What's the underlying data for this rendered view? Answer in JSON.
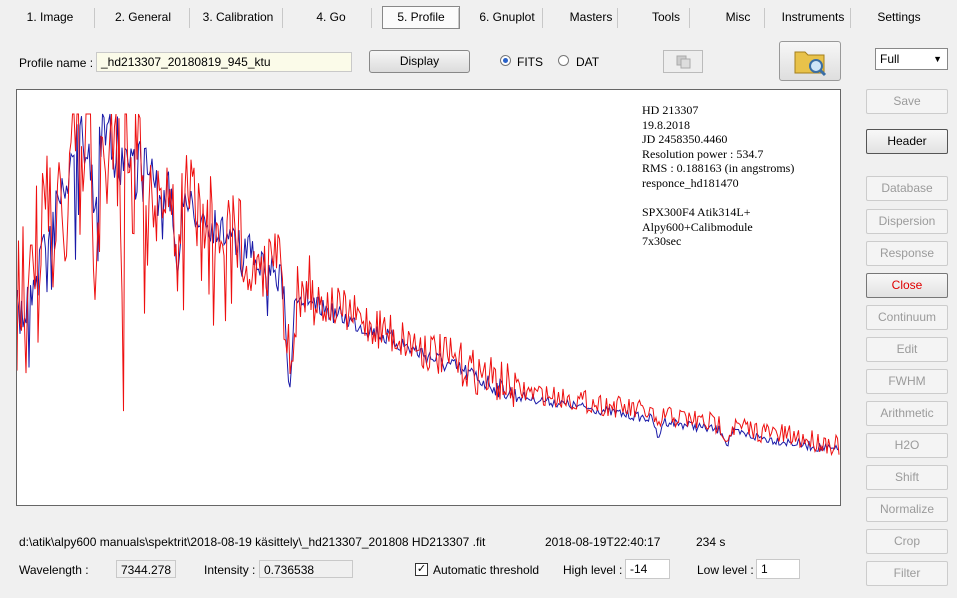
{
  "tabs": [
    "1. Image",
    "2. General",
    "3. Calibration",
    "4. Go",
    "5. Profile",
    "6. Gnuplot",
    "Masters",
    "Tools",
    "Misc",
    "Instruments",
    "Settings"
  ],
  "profile": {
    "label": "Profile name :",
    "value": "_hd213307_20180819_945_ktu",
    "display_button": "Display",
    "options": [
      "FITS",
      "DAT"
    ]
  },
  "plot": {
    "annotations_1": [
      "HD 213307",
      "19.8.2018",
      "JD 2458350.4460",
      "Resolution power : 534.7",
      "RMS : 0.188163 (in angstroms)",
      "responce_hd181470"
    ],
    "annotations_2": [
      "SPX300F4 Atik314L+",
      "Alpy600+Calibmodule",
      "7x30sec"
    ]
  },
  "side": {
    "dropdown": "Full",
    "buttons": [
      "Save",
      "Header",
      "Database",
      "Dispersion",
      "Response",
      "Close",
      "Continuum",
      "Edit",
      "FWHM",
      "Arithmetic",
      "H2O",
      "Shift",
      "Normalize",
      "Crop",
      "Filter"
    ]
  },
  "status": {
    "path": "d:\\atik\\alpy600 manuals\\spektrit\\2018-08-19 käsittely\\_hd213307_201808 HD213307 .fit",
    "date": "2018-08-19T22:40:17",
    "exposure": "234 s"
  },
  "fields": {
    "wavelength_label": "Wavelength :",
    "wavelength": "7344.278",
    "intensity_label": "Intensity :",
    "intensity": "0.736538",
    "auto_threshold": "Automatic threshold",
    "high_label": "High level :",
    "high": "-14",
    "low_label": "Low level :",
    "low": "1"
  }
}
